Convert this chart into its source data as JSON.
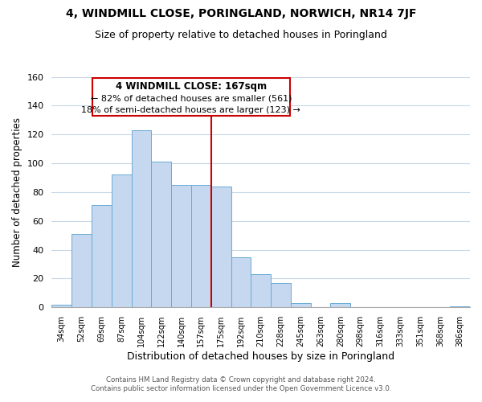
{
  "title1": "4, WINDMILL CLOSE, PORINGLAND, NORWICH, NR14 7JF",
  "title2": "Size of property relative to detached houses in Poringland",
  "xlabel": "Distribution of detached houses by size in Poringland",
  "ylabel": "Number of detached properties",
  "bar_labels": [
    "34sqm",
    "52sqm",
    "69sqm",
    "87sqm",
    "104sqm",
    "122sqm",
    "140sqm",
    "157sqm",
    "175sqm",
    "192sqm",
    "210sqm",
    "228sqm",
    "245sqm",
    "263sqm",
    "280sqm",
    "298sqm",
    "316sqm",
    "333sqm",
    "351sqm",
    "368sqm",
    "386sqm"
  ],
  "bar_values": [
    2,
    51,
    71,
    92,
    123,
    101,
    85,
    85,
    84,
    35,
    23,
    17,
    3,
    0,
    3,
    0,
    0,
    0,
    0,
    0,
    1
  ],
  "bar_color": "#c5d8f0",
  "bar_edgecolor": "#6aaad4",
  "reference_line_label": "4 WINDMILL CLOSE: 167sqm",
  "annotation_line1": "← 82% of detached houses are smaller (561)",
  "annotation_line2": "18% of semi-detached houses are larger (123) →",
  "box_edgecolor": "#cc0000",
  "vline_color": "#cc0000",
  "ylim": [
    0,
    160
  ],
  "yticks": [
    0,
    20,
    40,
    60,
    80,
    100,
    120,
    140,
    160
  ],
  "footnote1": "Contains HM Land Registry data © Crown copyright and database right 2024.",
  "footnote2": "Contains public sector information licensed under the Open Government Licence v3.0.",
  "background_color": "#ffffff",
  "grid_color": "#c8d8e8"
}
